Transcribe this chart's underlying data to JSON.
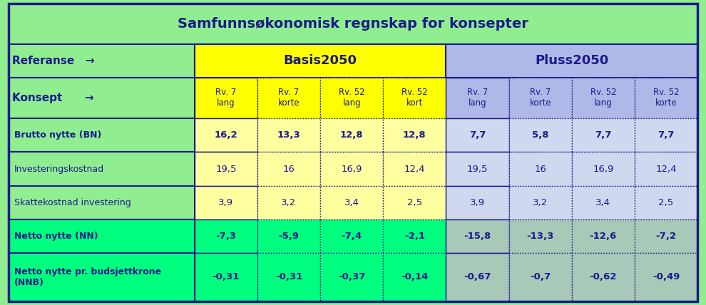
{
  "title": "Samfunnsøkonomisk regnskap for konsepter",
  "title_color": "#1a1a8c",
  "title_bg": "#90ee90",
  "outer_bg": "#90ee90",
  "referanse_label": "Referanse   →",
  "konsept_label": "Konsept      →",
  "basis_label": "Basis2050",
  "pluss_label": "Pluss2050",
  "basis_color": "#ffff00",
  "pluss_color": "#b0b8e8",
  "col_headers": [
    "Rv. 7\nlang",
    "Rv. 7\nkorte",
    "Rv. 52\nlang",
    "Rv. 52\nkort",
    "Rv. 7\nlang",
    "Rv. 7\nkorte",
    "Rv. 52\nlang",
    "Rv. 52\nkorte"
  ],
  "rows": [
    {
      "label": "Brutto nytte (BN)",
      "values": [
        "16,2",
        "13,3",
        "12,8",
        "12,8",
        "7,7",
        "5,8",
        "7,7",
        "7,7"
      ],
      "bold": true,
      "row_bg": "#ffffff"
    },
    {
      "label": "Investeringskostnad",
      "values": [
        "19,5",
        "16",
        "16,9",
        "12,4",
        "19,5",
        "16",
        "16,9",
        "12,4"
      ],
      "bold": false,
      "row_bg": "#ffffff"
    },
    {
      "label": "Skattekostnad investering",
      "values": [
        "3,9",
        "3,2",
        "3,4",
        "2,5",
        "3,9",
        "3,2",
        "3,4",
        "2,5"
      ],
      "bold": false,
      "row_bg": "#ffffff"
    },
    {
      "label": "Netto nytte (NN)",
      "values": [
        "-7,3",
        "-5,9",
        "-7,4",
        "-2,1",
        "-15,8",
        "-13,3",
        "-12,6",
        "-7,2"
      ],
      "bold": true,
      "row_bg": "#00ff7f"
    },
    {
      "label": "Netto nytte pr. budsjettkrone\n(NNB)",
      "values": [
        "-0,31",
        "-0,31",
        "-0,37",
        "-0,14",
        "-0,67",
        "-0,7",
        "-0,62",
        "-0,49"
      ],
      "bold": true,
      "row_bg": "#00ff7f"
    }
  ],
  "left_col_bg": "#90ee90",
  "basis_data_bg": "#ffffa0",
  "pluss_data_bg": "#d0d8f0",
  "bottom_left_bg": "#00ff7f",
  "bottom_pluss_bg": "#a8c8b8",
  "text_color_dark": "#1a1a8c"
}
